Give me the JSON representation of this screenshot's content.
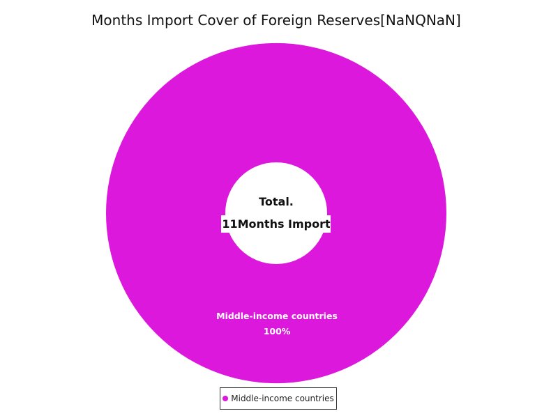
{
  "chart_data": {
    "type": "pie",
    "title": "Months Import Cover of Foreign Reserves[NaNQNaN]",
    "slices": [
      {
        "name": "Middle-income countries",
        "value": 11,
        "percent_label": "100%",
        "color": "#dc18dc"
      }
    ],
    "center": {
      "line1": "Total.",
      "line2": "11Months Import"
    },
    "legend": {
      "placement": "bottom-center",
      "entries": [
        "Middle-income countries"
      ]
    }
  }
}
